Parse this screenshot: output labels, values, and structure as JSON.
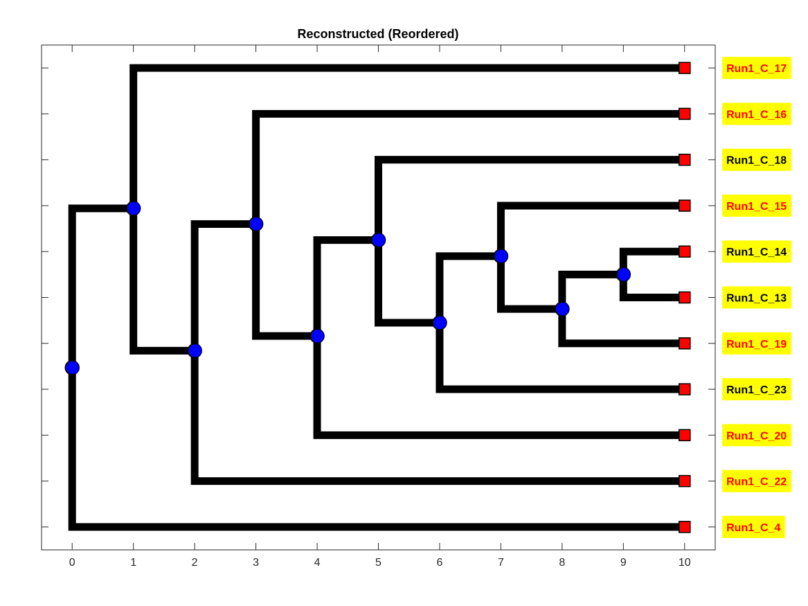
{
  "chart_data": {
    "type": "dendrogram",
    "title": "Reconstructed (Reordered)",
    "xlabel": "",
    "ylabel": "",
    "xlim": [
      -0.5,
      10.5
    ],
    "ylim": [
      0.5,
      11.5
    ],
    "x_ticks": [
      0,
      1,
      2,
      3,
      4,
      5,
      6,
      7,
      8,
      9,
      10
    ],
    "y_ticks": [
      1,
      2,
      3,
      4,
      5,
      6,
      7,
      8,
      9,
      10,
      11
    ],
    "grid": false,
    "colors": {
      "branch": "#000000",
      "internal_node": "#0000ff",
      "leaf_node": "#ff0000",
      "label_background": "#ffff00",
      "label_text_red": "#ff0000",
      "label_text_black": "#000000"
    },
    "leaves": [
      {
        "name": "Run1_C_17",
        "x": 10,
        "y": 11,
        "label_color": "red"
      },
      {
        "name": "Run1_C_16",
        "x": 10,
        "y": 10,
        "label_color": "red"
      },
      {
        "name": "Run1_C_18",
        "x": 10,
        "y": 9,
        "label_color": "black"
      },
      {
        "name": "Run1_C_15",
        "x": 10,
        "y": 8,
        "label_color": "red"
      },
      {
        "name": "Run1_C_14",
        "x": 10,
        "y": 7,
        "label_color": "black"
      },
      {
        "name": "Run1_C_13",
        "x": 10,
        "y": 6,
        "label_color": "black"
      },
      {
        "name": "Run1_C_19",
        "x": 10,
        "y": 5,
        "label_color": "red"
      },
      {
        "name": "Run1_C_23",
        "x": 10,
        "y": 4,
        "label_color": "black"
      },
      {
        "name": "Run1_C_20",
        "x": 10,
        "y": 3,
        "label_color": "red"
      },
      {
        "name": "Run1_C_22",
        "x": 10,
        "y": 2,
        "label_color": "red"
      },
      {
        "name": "Run1_C_4",
        "x": 10,
        "y": 1,
        "label_color": "red"
      }
    ],
    "internal_nodes": [
      {
        "id": "n0",
        "x": 0,
        "y": 4.47
      },
      {
        "id": "n1",
        "x": 1,
        "y": 7.94
      },
      {
        "id": "n2",
        "x": 2,
        "y": 4.84
      },
      {
        "id": "n3",
        "x": 3,
        "y": 7.6
      },
      {
        "id": "n4",
        "x": 4,
        "y": 5.16
      },
      {
        "id": "n5",
        "x": 5,
        "y": 7.25
      },
      {
        "id": "n6",
        "x": 6,
        "y": 5.45
      },
      {
        "id": "n7",
        "x": 7,
        "y": 6.9
      },
      {
        "id": "n8",
        "x": 8,
        "y": 5.75
      },
      {
        "id": "n9",
        "x": 9,
        "y": 6.5
      }
    ],
    "edges": [
      {
        "parent": "n0",
        "child": "n1"
      },
      {
        "parent": "n0",
        "child": "Run1_C_4"
      },
      {
        "parent": "n1",
        "child": "Run1_C_17"
      },
      {
        "parent": "n1",
        "child": "n2"
      },
      {
        "parent": "n2",
        "child": "n3"
      },
      {
        "parent": "n2",
        "child": "Run1_C_22"
      },
      {
        "parent": "n3",
        "child": "Run1_C_16"
      },
      {
        "parent": "n3",
        "child": "n4"
      },
      {
        "parent": "n4",
        "child": "n5"
      },
      {
        "parent": "n4",
        "child": "Run1_C_20"
      },
      {
        "parent": "n5",
        "child": "Run1_C_18"
      },
      {
        "parent": "n5",
        "child": "n6"
      },
      {
        "parent": "n6",
        "child": "n7"
      },
      {
        "parent": "n6",
        "child": "Run1_C_23"
      },
      {
        "parent": "n7",
        "child": "Run1_C_15"
      },
      {
        "parent": "n7",
        "child": "n8"
      },
      {
        "parent": "n8",
        "child": "n9"
      },
      {
        "parent": "n8",
        "child": "Run1_C_19"
      },
      {
        "parent": "n9",
        "child": "Run1_C_14"
      },
      {
        "parent": "n9",
        "child": "Run1_C_13"
      }
    ]
  }
}
